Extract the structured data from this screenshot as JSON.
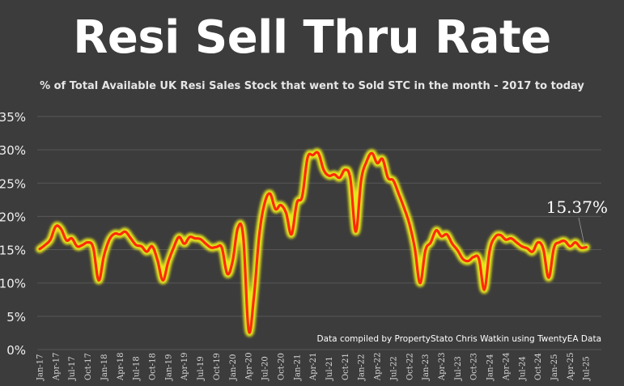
{
  "chart_data": {
    "type": "line",
    "title": "Resi Sell Thru Rate",
    "subtitle": "% of Total Available UK Resi Sales Stock that went to Sold STC in the month - 2017 to today",
    "xlabel": "",
    "ylabel": "",
    "ylim": [
      0,
      35
    ],
    "grid": true,
    "y_ticks": [
      "0%",
      "5%",
      "10%",
      "15%",
      "20%",
      "25%",
      "30%",
      "35%"
    ],
    "y_tick_values": [
      0,
      5,
      10,
      15,
      20,
      25,
      30,
      35
    ],
    "x_start": "Jan-17",
    "x_end": "Jul-25",
    "x_tick_every_months": 3,
    "x_ticks": [
      "Jan-17",
      "Apr-17",
      "Jul-17",
      "Oct-17",
      "Jan-18",
      "Apr-18",
      "Jul-18",
      "Oct-18",
      "Jan-19",
      "Apr-19",
      "Jul-19",
      "Oct-19",
      "Jan-20",
      "Apr-20",
      "Jul-20",
      "Oct-20",
      "Jan-21",
      "Apr-21",
      "Jul-21",
      "Oct-21",
      "Jan-22",
      "Apr-22",
      "Jul-22",
      "Oct-22",
      "Jan-23",
      "Apr-23",
      "Jul-23",
      "Oct-23",
      "Jan-24",
      "Apr-24",
      "Jul-24",
      "Oct-24",
      "Jan-25",
      "Apr-25",
      "Jul-25"
    ],
    "series": [
      {
        "name": "Sell Thru Rate (%)",
        "values": [
          15.1,
          15.7,
          16.5,
          18.5,
          18.1,
          16.4,
          16.7,
          15.5,
          15.7,
          16.1,
          15.3,
          10.4,
          14.1,
          16.5,
          17.4,
          17.3,
          17.7,
          16.7,
          15.7,
          15.5,
          14.7,
          15.5,
          13.4,
          10.4,
          13.2,
          15.3,
          16.9,
          15.9,
          16.9,
          16.7,
          16.6,
          15.9,
          15.3,
          15.4,
          15.3,
          11.4,
          13.2,
          18.3,
          16.9,
          2.9,
          8.0,
          17.3,
          22.0,
          23.4,
          21.1,
          21.7,
          20.5,
          17.3,
          22.0,
          23.0,
          28.8,
          29.2,
          29.5,
          27.0,
          26.1,
          26.3,
          25.8,
          27.0,
          25.6,
          17.7,
          25.4,
          28.2,
          29.5,
          28.0,
          28.6,
          25.8,
          25.4,
          23.4,
          21.3,
          18.9,
          15.3,
          10.0,
          14.9,
          16.1,
          17.9,
          17.0,
          17.3,
          15.9,
          14.9,
          13.6,
          13.3,
          13.9,
          13.6,
          9.0,
          14.9,
          16.9,
          17.2,
          16.5,
          16.7,
          16.1,
          15.5,
          15.2,
          14.7,
          16.1,
          15.1,
          10.8,
          15.3,
          16.1,
          16.3,
          15.5,
          16.1,
          15.3,
          15.37
        ]
      }
    ],
    "annotation": "15.37%",
    "footnote": "Data compiled by PropertyStato Chris Watkin using TwentyEA Data",
    "colors": {
      "line": "#ff2a0a",
      "glow": "#e6e61a",
      "grid": "#575757",
      "background": "#3c3c3c"
    }
  }
}
